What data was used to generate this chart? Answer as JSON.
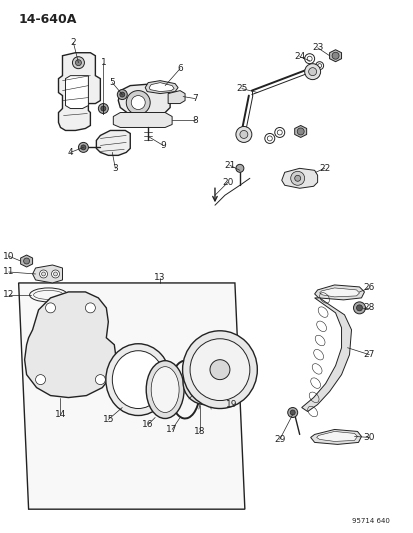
{
  "title": "14-640A",
  "watermark": "95714 640",
  "bg_color": "#ffffff",
  "fg_color": "#222222",
  "fig_width": 4.14,
  "fig_height": 5.33,
  "dpi": 100
}
